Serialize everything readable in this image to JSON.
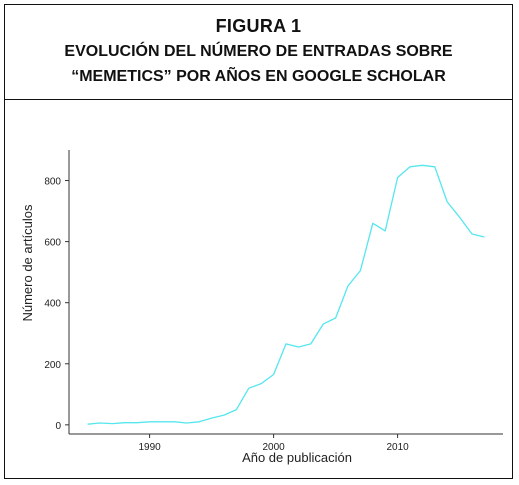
{
  "figure": {
    "label": "FIGURA 1",
    "title_line1": "EVOLUCIÓN DEL NÚMERO DE ENTRADAS SOBRE",
    "title_line2": "“MEMETICS” POR AÑOS EN GOOGLE SCHOLAR"
  },
  "chart_data": {
    "type": "line",
    "xlabel": "Año de publicación",
    "ylabel": "Número de artículos",
    "xlim": [
      1983.5,
      2018.5
    ],
    "ylim": [
      -30,
      900
    ],
    "xticks": [
      1990,
      2000,
      2010
    ],
    "yticks": [
      0,
      200,
      400,
      600,
      800
    ],
    "xtick_labels": [
      "1990",
      "2000",
      "2010"
    ],
    "ytick_labels": [
      "0",
      "200",
      "400",
      "600",
      "800"
    ],
    "grid": false,
    "line_color": "#55e6ee",
    "series": [
      {
        "x": [
          1985,
          1986,
          1987,
          1988,
          1989,
          1990,
          1991,
          1992,
          1993,
          1994,
          1995,
          1996,
          1997,
          1998,
          1999,
          2000,
          2001,
          2002,
          2003,
          2004,
          2005,
          2006,
          2007,
          2008,
          2009,
          2010,
          2011,
          2012,
          2013,
          2014,
          2015,
          2016,
          2017
        ],
        "values": [
          2,
          6,
          4,
          7,
          7,
          10,
          10,
          10,
          6,
          10,
          22,
          32,
          50,
          120,
          135,
          165,
          265,
          255,
          265,
          330,
          350,
          455,
          505,
          660,
          635,
          810,
          845,
          850,
          845,
          730,
          680,
          625,
          615
        ]
      }
    ]
  }
}
